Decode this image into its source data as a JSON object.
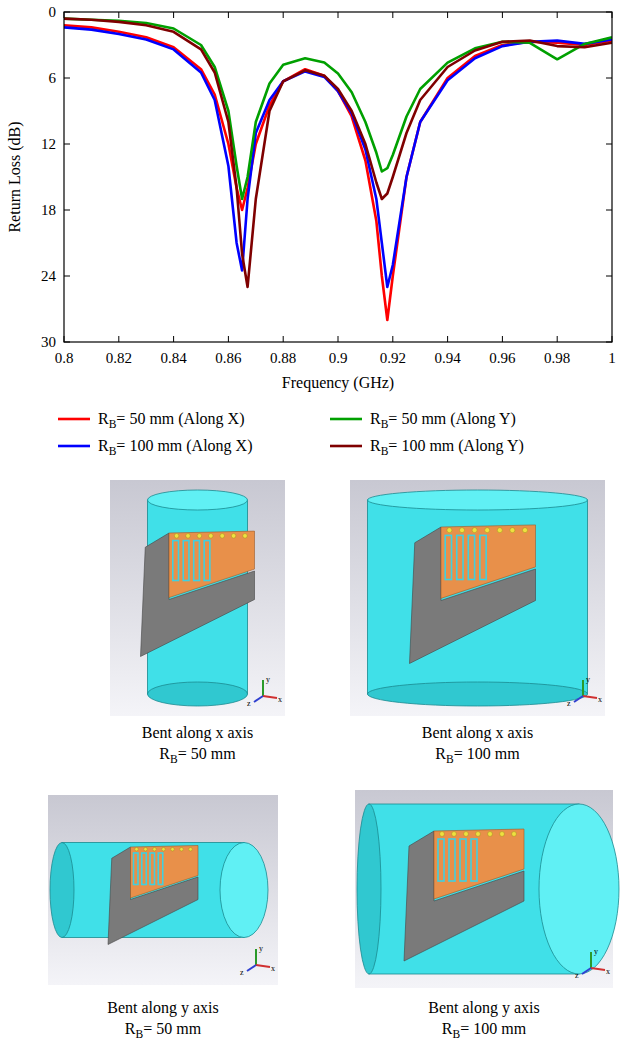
{
  "chart_data": {
    "type": "line",
    "x_label": "Frequency (GHz)",
    "y_label": "Return Loss (dB)",
    "x": [
      0.8,
      0.81,
      0.82,
      0.83,
      0.84,
      0.85,
      0.855,
      0.86,
      0.863,
      0.865,
      0.867,
      0.87,
      0.875,
      0.88,
      0.888,
      0.895,
      0.9,
      0.905,
      0.91,
      0.914,
      0.916,
      0.918,
      0.92,
      0.925,
      0.93,
      0.94,
      0.95,
      0.96,
      0.97,
      0.98,
      0.99,
      1.0
    ],
    "series": [
      {
        "name": "RB= 50 mm (Along X)",
        "color": "#ff0000",
        "values": [
          1.2,
          1.4,
          1.8,
          2.3,
          3.2,
          5.2,
          7.5,
          12,
          16,
          18,
          16,
          12,
          8.5,
          6.3,
          5.2,
          5.8,
          7.2,
          9.5,
          13.5,
          19,
          24,
          28,
          24,
          15,
          10,
          6,
          4,
          3,
          2.7,
          2.8,
          3,
          2.6
        ]
      },
      {
        "name": "RB= 100 mm (Along X)",
        "color": "#0000ff",
        "values": [
          1.4,
          1.6,
          2.0,
          2.5,
          3.4,
          5.5,
          8,
          14,
          21,
          23.5,
          17,
          11,
          8,
          6.3,
          5.4,
          5.9,
          7.2,
          9.2,
          12.5,
          17,
          21,
          25,
          23,
          15,
          10,
          6.2,
          4.2,
          3.1,
          2.7,
          2.6,
          2.9,
          2.5
        ]
      },
      {
        "name": "RB= 50 mm (Along Y)",
        "color": "#00a000",
        "values": [
          0.6,
          0.7,
          0.8,
          1.0,
          1.5,
          3.0,
          5,
          9,
          14,
          17,
          15,
          10,
          6.5,
          4.8,
          4.2,
          4.6,
          5.6,
          7.3,
          10,
          12.8,
          14.5,
          14.2,
          13,
          9.5,
          7,
          4.6,
          3.3,
          2.7,
          2.8,
          4.3,
          2.9,
          2.3
        ]
      },
      {
        "name": "RB= 100 mm (Along Y)",
        "color": "#7f0000",
        "values": [
          0.6,
          0.7,
          0.9,
          1.2,
          1.8,
          3.4,
          5.5,
          10,
          16,
          22,
          25,
          17,
          9,
          6.3,
          5.3,
          5.8,
          7.0,
          9,
          12,
          15.5,
          17,
          16.5,
          15,
          11,
          8,
          5,
          3.5,
          2.7,
          2.6,
          3.1,
          3.2,
          2.8
        ]
      }
    ],
    "xlim": [
      0.8,
      1.0
    ],
    "xticks": [
      0.8,
      0.82,
      0.84,
      0.86,
      0.88,
      0.9,
      0.92,
      0.94,
      0.96,
      0.98,
      1
    ],
    "ylim": [
      30,
      0
    ],
    "yticks": [
      0,
      6,
      12,
      18,
      24,
      30
    ],
    "grid": false,
    "legend": "below"
  },
  "panels": [
    {
      "caption": "Bent along x axis",
      "radius": "RB= 50 mm"
    },
    {
      "caption": "Bent along x axis",
      "radius": "RB= 100 mm"
    },
    {
      "caption": "Bent along y axis",
      "radius": "RB= 50 mm"
    },
    {
      "caption": "Bent along y axis",
      "radius": "RB= 100 mm"
    }
  ],
  "triad_labels": [
    "x",
    "y",
    "z"
  ]
}
